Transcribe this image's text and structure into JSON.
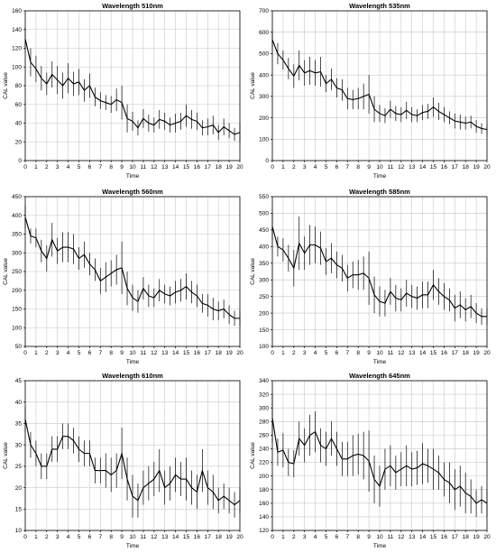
{
  "chart_data": [
    {
      "type": "line",
      "title": "Wavelength 510nm",
      "xlabel": "Time",
      "ylabel": "CAL value",
      "xlim": [
        0,
        20
      ],
      "ylim": [
        0,
        160
      ],
      "yticks": [
        0,
        20,
        40,
        60,
        80,
        100,
        120,
        140,
        160
      ],
      "xticks": [
        0,
        1,
        2,
        3,
        4,
        5,
        6,
        7,
        8,
        9,
        10,
        11,
        12,
        13,
        14,
        15,
        16,
        17,
        18,
        19,
        20
      ],
      "grid": true,
      "x": [
        0,
        0.5,
        1,
        1.5,
        2,
        2.5,
        3,
        3.5,
        4,
        4.5,
        5,
        5.5,
        6,
        6.5,
        7,
        7.5,
        8,
        8.5,
        9,
        9.5,
        10,
        10.5,
        11,
        11.5,
        12,
        12.5,
        13,
        13.5,
        14,
        14.5,
        15,
        15.5,
        16,
        16.5,
        17,
        17.5,
        18,
        18.5,
        19,
        19.5,
        20
      ],
      "y": [
        130,
        105,
        98,
        88,
        82,
        92,
        86,
        80,
        88,
        82,
        84,
        75,
        80,
        68,
        64,
        62,
        60,
        65,
        62,
        45,
        42,
        35,
        45,
        40,
        38,
        44,
        42,
        38,
        40,
        42,
        48,
        44,
        42,
        35,
        36,
        38,
        30,
        36,
        32,
        28,
        30
      ],
      "err": [
        12,
        15,
        14,
        13,
        12,
        14,
        15,
        14,
        16,
        13,
        14,
        12,
        13,
        10,
        9,
        8,
        9,
        12,
        18,
        15,
        10,
        8,
        10,
        9,
        8,
        10,
        9,
        8,
        10,
        9,
        12,
        10,
        9,
        8,
        9,
        10,
        8,
        9,
        8,
        7,
        10
      ]
    },
    {
      "type": "line",
      "title": "Wavelength 535nm",
      "xlabel": "Time",
      "ylabel": "CAL value",
      "xlim": [
        0,
        20
      ],
      "ylim": [
        0,
        700
      ],
      "yticks": [
        0,
        100,
        200,
        300,
        400,
        500,
        600,
        700
      ],
      "xticks": [
        0,
        1,
        2,
        3,
        4,
        5,
        6,
        7,
        8,
        9,
        10,
        11,
        12,
        13,
        14,
        15,
        16,
        17,
        18,
        19,
        20
      ],
      "grid": true,
      "x": [
        0,
        0.5,
        1,
        1.5,
        2,
        2.5,
        3,
        3.5,
        4,
        4.5,
        5,
        5.5,
        6,
        6.5,
        7,
        7.5,
        8,
        8.5,
        9,
        9.5,
        10,
        10.5,
        11,
        11.5,
        12,
        12.5,
        13,
        13.5,
        14,
        14.5,
        15,
        15.5,
        16,
        16.5,
        17,
        17.5,
        18,
        18.5,
        19,
        19.5,
        20
      ],
      "y": [
        565,
        500,
        470,
        430,
        395,
        445,
        410,
        420,
        410,
        415,
        360,
        380,
        340,
        330,
        290,
        285,
        290,
        300,
        310,
        240,
        220,
        210,
        240,
        220,
        215,
        235,
        215,
        210,
        225,
        230,
        250,
        230,
        215,
        200,
        185,
        180,
        175,
        180,
        160,
        150,
        145
      ],
      "err": [
        45,
        50,
        45,
        50,
        55,
        70,
        60,
        65,
        60,
        70,
        40,
        50,
        45,
        50,
        50,
        45,
        50,
        60,
        90,
        60,
        40,
        35,
        40,
        35,
        35,
        40,
        35,
        30,
        35,
        35,
        45,
        40,
        35,
        30,
        35,
        35,
        30,
        30,
        30,
        25,
        25
      ]
    },
    {
      "type": "line",
      "title": "Wavelength 560nm",
      "xlabel": "Time",
      "ylabel": "CAL value",
      "xlim": [
        0,
        20
      ],
      "ylim": [
        50,
        450
      ],
      "yticks": [
        50,
        100,
        150,
        200,
        250,
        300,
        350,
        400,
        450
      ],
      "xticks": [
        0,
        1,
        2,
        3,
        4,
        5,
        6,
        7,
        8,
        9,
        10,
        11,
        12,
        13,
        14,
        15,
        16,
        17,
        18,
        19,
        20
      ],
      "grid": true,
      "x": [
        0,
        0.5,
        1,
        1.5,
        2,
        2.5,
        3,
        3.5,
        4,
        4.5,
        5,
        5.5,
        6,
        6.5,
        7,
        7.5,
        8,
        8.5,
        9,
        9.5,
        10,
        10.5,
        11,
        11.5,
        12,
        12.5,
        13,
        13.5,
        14,
        14.5,
        15,
        15.5,
        16,
        16.5,
        17,
        17.5,
        18,
        18.5,
        19,
        19.5,
        20
      ],
      "y": [
        395,
        345,
        340,
        305,
        285,
        335,
        305,
        315,
        315,
        310,
        285,
        295,
        270,
        255,
        225,
        235,
        245,
        255,
        260,
        205,
        180,
        170,
        205,
        185,
        180,
        200,
        190,
        185,
        195,
        200,
        210,
        195,
        185,
        165,
        160,
        150,
        145,
        150,
        135,
        125,
        125
      ],
      "err": [
        30,
        20,
        25,
        30,
        35,
        45,
        35,
        40,
        40,
        40,
        30,
        35,
        30,
        30,
        35,
        40,
        35,
        40,
        70,
        45,
        35,
        30,
        30,
        30,
        25,
        30,
        25,
        25,
        30,
        30,
        35,
        30,
        30,
        25,
        30,
        30,
        25,
        25,
        25,
        20,
        20
      ]
    },
    {
      "type": "line",
      "title": "Wavelength 585nm",
      "xlabel": "Time",
      "ylabel": "CAL value",
      "xlim": [
        0,
        20
      ],
      "ylim": [
        100,
        550
      ],
      "yticks": [
        100,
        150,
        200,
        250,
        300,
        350,
        400,
        450,
        500,
        550
      ],
      "xticks": [
        0,
        1,
        2,
        3,
        4,
        5,
        6,
        7,
        8,
        9,
        10,
        11,
        12,
        13,
        14,
        15,
        16,
        17,
        18,
        19,
        20
      ],
      "grid": true,
      "x": [
        0,
        0.5,
        1,
        1.5,
        2,
        2.5,
        3,
        3.5,
        4,
        4.5,
        5,
        5.5,
        6,
        6.5,
        7,
        7.5,
        8,
        8.5,
        9,
        9.5,
        10,
        10.5,
        11,
        11.5,
        12,
        12.5,
        13,
        13.5,
        14,
        14.5,
        15,
        15.5,
        16,
        16.5,
        17,
        17.5,
        18,
        18.5,
        19,
        19.5,
        20
      ],
      "y": [
        460,
        400,
        390,
        365,
        335,
        410,
        380,
        405,
        405,
        395,
        355,
        365,
        345,
        335,
        305,
        315,
        315,
        320,
        305,
        255,
        235,
        230,
        265,
        245,
        240,
        260,
        250,
        245,
        255,
        255,
        285,
        265,
        250,
        240,
        215,
        225,
        210,
        220,
        200,
        190,
        190
      ],
      "err": [
        40,
        30,
        35,
        40,
        55,
        80,
        50,
        60,
        55,
        50,
        40,
        45,
        40,
        40,
        40,
        40,
        45,
        50,
        80,
        55,
        45,
        40,
        40,
        40,
        35,
        40,
        35,
        35,
        40,
        40,
        45,
        40,
        40,
        35,
        40,
        40,
        35,
        35,
        30,
        25,
        25
      ]
    },
    {
      "type": "line",
      "title": "Wavelength 610nm",
      "xlabel": "Time",
      "ylabel": "CAL value",
      "xlim": [
        0,
        20
      ],
      "ylim": [
        10,
        45
      ],
      "yticks": [
        10,
        15,
        20,
        25,
        30,
        35,
        40,
        45
      ],
      "xticks": [
        0,
        1,
        2,
        3,
        4,
        5,
        6,
        7,
        8,
        9,
        10,
        11,
        12,
        13,
        14,
        15,
        16,
        17,
        18,
        19,
        20
      ],
      "grid": true,
      "x": [
        0,
        0.5,
        1,
        1.5,
        2,
        2.5,
        3,
        3.5,
        4,
        4.5,
        5,
        5.5,
        6,
        6.5,
        7,
        7.5,
        8,
        8.5,
        9,
        9.5,
        10,
        10.5,
        11,
        11.5,
        12,
        12.5,
        13,
        13.5,
        14,
        14.5,
        15,
        15.5,
        16,
        16.5,
        17,
        17.5,
        18,
        18.5,
        19,
        19.5,
        20
      ],
      "y": [
        36,
        30,
        28,
        25,
        25,
        29,
        29,
        32,
        32,
        31,
        29,
        28,
        28,
        24,
        24,
        24,
        23,
        24,
        28,
        22,
        18,
        17,
        20,
        21,
        22,
        24,
        20,
        21,
        23,
        22,
        22,
        20,
        19,
        24,
        20,
        19,
        17,
        18,
        17,
        16,
        17
      ],
      "err": [
        3,
        3,
        3,
        3,
        3,
        3,
        3,
        3,
        3,
        3,
        3,
        3,
        3,
        3,
        3,
        4,
        4,
        4,
        6,
        5,
        5,
        4,
        4,
        4,
        4,
        5,
        4,
        4,
        4,
        4,
        5,
        4,
        4,
        5,
        4,
        4,
        3,
        3,
        3,
        3,
        3
      ]
    },
    {
      "type": "line",
      "title": "Wavelength 645nm",
      "xlabel": "Time",
      "ylabel": "CAL value",
      "xlim": [
        0,
        20
      ],
      "ylim": [
        120,
        340
      ],
      "yticks": [
        120,
        140,
        160,
        180,
        200,
        220,
        240,
        260,
        280,
        300,
        320,
        340
      ],
      "xticks": [
        0,
        1,
        2,
        3,
        4,
        5,
        6,
        7,
        8,
        9,
        10,
        11,
        12,
        13,
        14,
        15,
        16,
        17,
        18,
        19,
        20
      ],
      "grid": true,
      "x": [
        0,
        0.5,
        1,
        1.5,
        2,
        2.5,
        3,
        3.5,
        4,
        4.5,
        5,
        5.5,
        6,
        6.5,
        7,
        7.5,
        8,
        8.5,
        9,
        9.5,
        10,
        10.5,
        11,
        11.5,
        12,
        12.5,
        13,
        13.5,
        14,
        14.5,
        15,
        15.5,
        16,
        16.5,
        17,
        17.5,
        18,
        18.5,
        19,
        19.5,
        20
      ],
      "y": [
        285,
        235,
        238,
        220,
        218,
        255,
        245,
        260,
        265,
        245,
        240,
        255,
        240,
        225,
        225,
        230,
        232,
        230,
        222,
        195,
        185,
        210,
        215,
        205,
        210,
        215,
        210,
        212,
        218,
        215,
        210,
        205,
        195,
        190,
        180,
        185,
        175,
        170,
        160,
        165,
        160
      ],
      "err": [
        35,
        20,
        25,
        20,
        20,
        25,
        25,
        30,
        30,
        25,
        25,
        25,
        25,
        25,
        25,
        30,
        30,
        35,
        45,
        35,
        30,
        30,
        30,
        25,
        25,
        30,
        25,
        25,
        30,
        25,
        30,
        25,
        25,
        30,
        30,
        30,
        30,
        25,
        20,
        20,
        20
      ]
    }
  ]
}
